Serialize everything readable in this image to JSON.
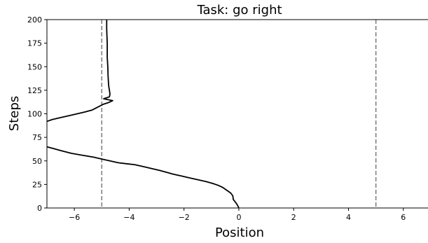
{
  "chart_data": {
    "type": "line",
    "title": "Task: go right",
    "xlabel": "Position",
    "ylabel": "Steps",
    "xlim": [
      -7,
      6.9
    ],
    "ylim": [
      0,
      200
    ],
    "xticks": [
      -6,
      -4,
      -2,
      0,
      2,
      4,
      6
    ],
    "yticks": [
      0,
      25,
      50,
      75,
      100,
      125,
      150,
      175,
      200
    ],
    "xtick_labels": [
      "−6",
      "−4",
      "−2",
      "0",
      "2",
      "4",
      "6"
    ],
    "ytick_labels": [
      "0",
      "25",
      "50",
      "75",
      "100",
      "125",
      "150",
      "175",
      "200"
    ],
    "grid": false,
    "reference_lines": [
      {
        "x": -5,
        "style": "dashed",
        "color": "#808080"
      },
      {
        "x": 5,
        "style": "dashed",
        "color": "#808080"
      }
    ],
    "series": [
      {
        "color": "#000000",
        "segments": [
          [
            [
              0.0,
              0
            ],
            [
              -0.05,
              3
            ],
            [
              -0.12,
              6
            ],
            [
              -0.2,
              9
            ],
            [
              -0.22,
              13
            ],
            [
              -0.3,
              16
            ],
            [
              -0.45,
              19
            ],
            [
              -0.6,
              22
            ],
            [
              -0.75,
              24
            ],
            [
              -0.95,
              26
            ],
            [
              -1.2,
              28
            ],
            [
              -1.5,
              30
            ],
            [
              -1.8,
              32
            ],
            [
              -2.1,
              34
            ],
            [
              -2.4,
              36
            ],
            [
              -2.65,
              38
            ],
            [
              -2.9,
              40
            ],
            [
              -3.2,
              42
            ],
            [
              -3.5,
              44
            ],
            [
              -3.8,
              46
            ],
            [
              -4.1,
              47
            ],
            [
              -4.4,
              48
            ],
            [
              -4.7,
              50
            ],
            [
              -5.0,
              52
            ],
            [
              -5.3,
              54
            ],
            [
              -5.7,
              56
            ],
            [
              -6.1,
              58
            ],
            [
              -6.5,
              61
            ],
            [
              -6.75,
              63
            ],
            [
              -7.0,
              65
            ]
          ],
          [
            [
              -7.0,
              92
            ],
            [
              -6.8,
              94
            ],
            [
              -6.5,
              96
            ],
            [
              -6.2,
              98
            ],
            [
              -5.9,
              100
            ],
            [
              -5.6,
              102
            ],
            [
              -5.35,
              104
            ],
            [
              -5.15,
              107
            ],
            [
              -4.95,
              110
            ],
            [
              -4.75,
              112
            ],
            [
              -4.6,
              114
            ],
            [
              -4.93,
              116
            ],
            [
              -4.72,
              118
            ],
            [
              -4.7,
              121
            ],
            [
              -4.72,
              125
            ],
            [
              -4.75,
              130
            ],
            [
              -4.77,
              140
            ],
            [
              -4.78,
              150
            ],
            [
              -4.8,
              160
            ],
            [
              -4.8,
              175
            ],
            [
              -4.82,
              190
            ],
            [
              -4.82,
              200
            ]
          ]
        ]
      }
    ]
  }
}
